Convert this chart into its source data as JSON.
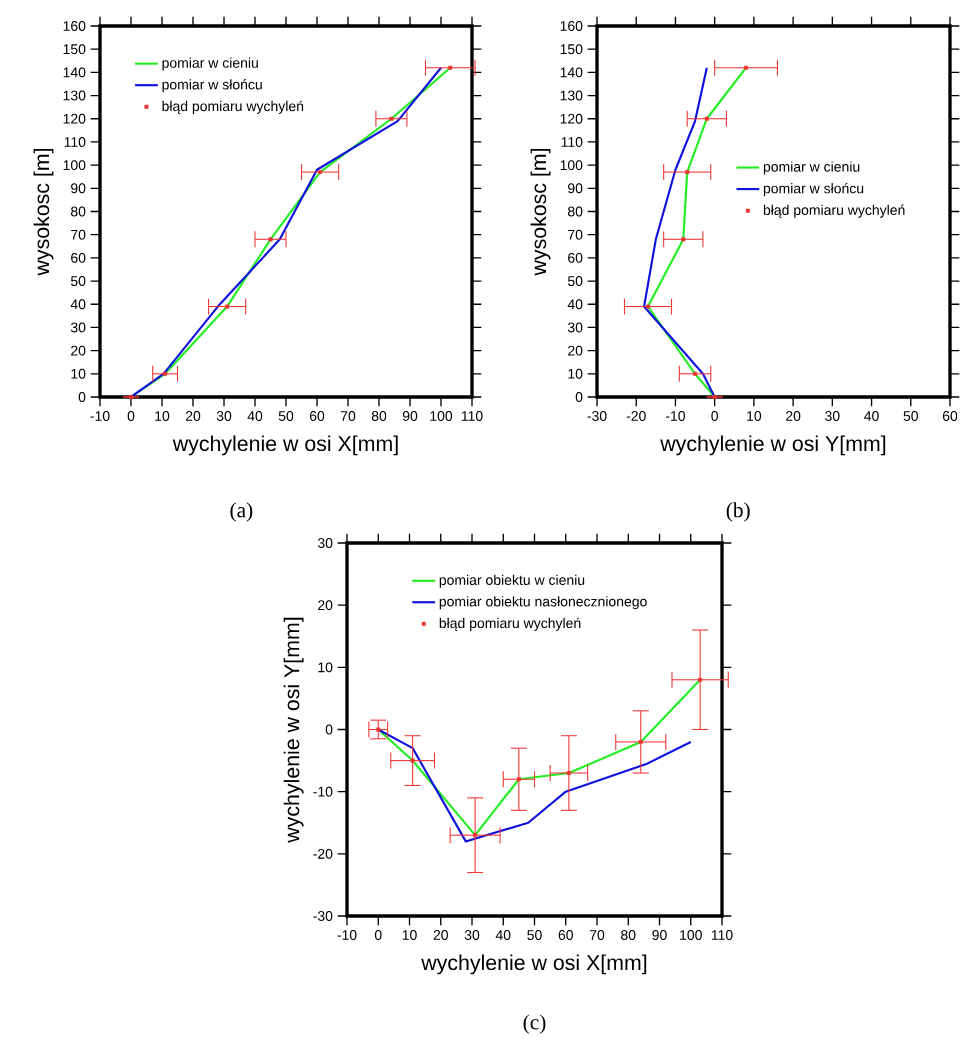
{
  "chart_data": [
    {
      "type": "line",
      "xlabel": "wychylenie w osi X[mm]",
      "ylabel": "wysokosc [m]",
      "annotations": [
        "(a)"
      ],
      "xlim": [
        -10,
        110
      ],
      "ylim": [
        0,
        160
      ],
      "xticks": [
        -10,
        0,
        10,
        20,
        30,
        40,
        50,
        60,
        70,
        80,
        90,
        100,
        110
      ],
      "yticks": [
        0,
        10,
        20,
        30,
        40,
        50,
        60,
        70,
        80,
        90,
        100,
        110,
        120,
        130,
        140,
        150,
        160
      ],
      "legend": "top left",
      "series": [
        {
          "name": "pomiar w cieniu",
          "color": "#22ee22",
          "x": [
            0,
            11,
            31,
            45,
            61,
            84,
            103
          ],
          "values": [
            0,
            10,
            39,
            68,
            97,
            120,
            142
          ]
        },
        {
          "name": "pomiar w słońcu",
          "color": "#1010e0",
          "x": [
            0,
            10.5,
            28,
            48,
            60,
            86,
            100
          ],
          "values": [
            0,
            10,
            39,
            68,
            98,
            119,
            142
          ]
        },
        {
          "name": "błąd pomiaru wychyleń",
          "type": "scatter",
          "marker": "square",
          "color": "#ee3333",
          "x": [
            0,
            11,
            31,
            45,
            61,
            84,
            103
          ],
          "values": [
            0,
            10,
            39,
            68,
            97,
            120,
            142
          ],
          "xerrors": [
            0,
            4,
            6,
            5,
            6,
            5,
            8
          ]
        }
      ]
    },
    {
      "type": "line",
      "xlabel": "wychylenie w osi Y[mm]",
      "ylabel": "wysokosc [m]",
      "annotations": [
        "(b)"
      ],
      "xlim": [
        -30,
        60
      ],
      "ylim": [
        0,
        160
      ],
      "xticks": [
        -30,
        -20,
        -10,
        0,
        10,
        20,
        30,
        40,
        50,
        60
      ],
      "yticks": [
        0,
        10,
        20,
        30,
        40,
        50,
        60,
        70,
        80,
        90,
        100,
        110,
        120,
        130,
        140,
        150,
        160
      ],
      "legend": "right",
      "series": [
        {
          "name": "pomiar w cieniu",
          "color": "#22ee22",
          "x": [
            0,
            -5,
            -17,
            -8,
            -7,
            -2,
            8
          ],
          "values": [
            0,
            10,
            39,
            68,
            97,
            120,
            142
          ]
        },
        {
          "name": "pomiar w słońcu",
          "color": "#1010e0",
          "x": [
            0,
            -3,
            -18,
            -15,
            -10,
            -5,
            -2
          ],
          "values": [
            0,
            10,
            39,
            68,
            98,
            119,
            142
          ]
        },
        {
          "name": "błąd pomiaru wychyleń",
          "type": "scatter",
          "marker": "square",
          "color": "#ee3333",
          "x": [
            0,
            -5,
            -17,
            -8,
            -7,
            -2,
            8
          ],
          "values": [
            0,
            10,
            39,
            68,
            97,
            120,
            142
          ],
          "xerrors": [
            0,
            4,
            6,
            5,
            6,
            5,
            8
          ]
        }
      ]
    },
    {
      "type": "line",
      "xlabel": "wychylenie w osi X[mm]",
      "ylabel": "wychylenie w osi Y[mm]",
      "annotations": [
        "(c)"
      ],
      "xlim": [
        -10,
        110
      ],
      "ylim": [
        -30,
        30
      ],
      "xticks": [
        -10,
        0,
        10,
        20,
        30,
        40,
        50,
        60,
        70,
        80,
        90,
        100,
        110
      ],
      "yticks": [
        -30,
        -20,
        -10,
        0,
        10,
        20,
        30
      ],
      "legend": "top",
      "series": [
        {
          "name": "pomiar obiektu w cieniu",
          "color": "#22ee22",
          "x": [
            0,
            11,
            31,
            45,
            61,
            84,
            103
          ],
          "values": [
            0,
            -5,
            -17,
            -8,
            -7,
            -2,
            8
          ]
        },
        {
          "name": "pomiar obiektu nasłonecznionego",
          "color": "#1010e0",
          "x": [
            0,
            11,
            28,
            48,
            60,
            86,
            100
          ],
          "values": [
            0,
            -3,
            -18,
            -15,
            -10,
            -5.5,
            -2
          ]
        },
        {
          "name": "błąd pomiaru wychyleń",
          "type": "scatter",
          "marker": "square",
          "color": "#ee3333",
          "x": [
            0,
            11,
            31,
            45,
            61,
            84,
            103
          ],
          "values": [
            0,
            -5,
            -17,
            -8,
            -7,
            -2,
            8
          ],
          "xerrors": [
            3,
            7,
            8,
            5,
            6,
            8,
            9
          ],
          "errors": [
            1.5,
            4,
            6,
            5,
            6,
            5,
            8
          ]
        }
      ]
    }
  ]
}
